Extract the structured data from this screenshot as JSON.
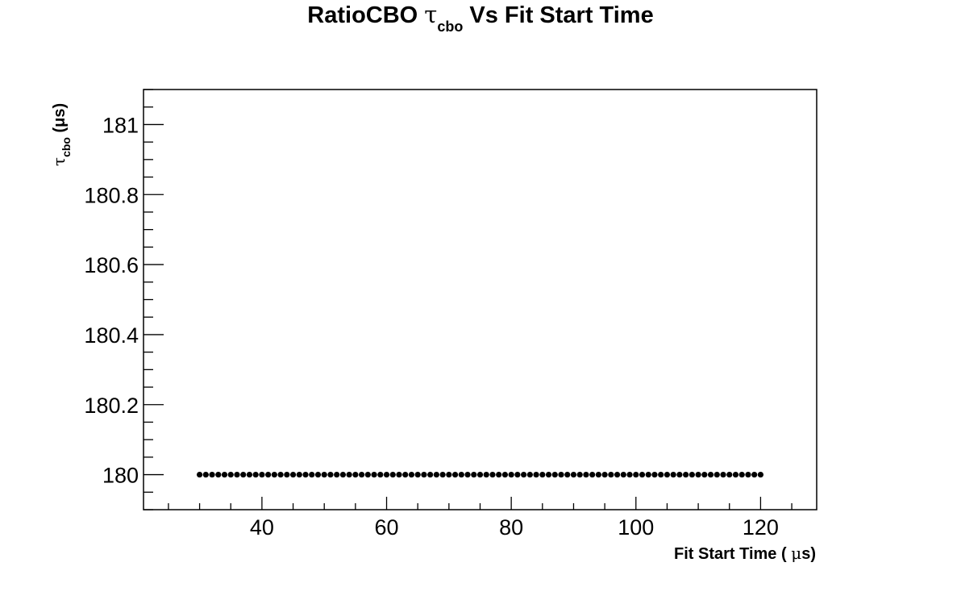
{
  "chart_data": {
    "type": "scatter",
    "title": {
      "prefix": "RatioCBO ",
      "symbol": "τ",
      "subscript": "cbo",
      "suffix": " Vs Fit Start Time"
    },
    "xlabel": {
      "text": "Fit Start Time ( ",
      "symbol": "μ",
      "unit": "s)"
    },
    "ylabel": {
      "symbol": "τ",
      "subscript": "cbo",
      "unit": " (μs)"
    },
    "xlim": [
      21,
      129
    ],
    "ylim": [
      179.9,
      181.1
    ],
    "x_ticks": [
      40,
      60,
      80,
      100,
      120
    ],
    "x_tick_labels": [
      "40",
      "60",
      "80",
      "100",
      "120"
    ],
    "y_ticks": [
      180,
      180.2,
      180.4,
      180.6,
      180.8,
      181
    ],
    "y_tick_labels": [
      "180",
      "180.2",
      "180.4",
      "180.6",
      "180.8",
      "181"
    ],
    "x_start": 30,
    "x_end": 120,
    "x_step": 1,
    "y_value": 180,
    "marker_color": "#000000",
    "grid": false
  }
}
